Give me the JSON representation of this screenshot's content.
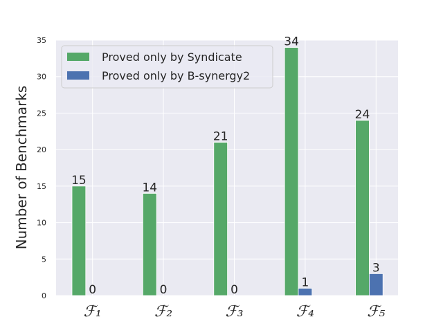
{
  "chart_data": {
    "type": "bar",
    "ylabel": "Number of Benchmarks",
    "categories": [
      "ℱ₁",
      "ℱ₂",
      "ℱ₃",
      "ℱ₄",
      "ℱ₅"
    ],
    "series": [
      {
        "name": "Proved only by Syndicate",
        "color": "#55a868",
        "values": [
          15,
          14,
          21,
          34,
          24
        ]
      },
      {
        "name": "Proved only by B-synergy2",
        "color": "#4c72b0",
        "values": [
          0,
          0,
          0,
          1,
          3
        ]
      }
    ],
    "ylim": [
      0,
      35
    ],
    "yticks": [
      0,
      5,
      10,
      15,
      20,
      25,
      30,
      35
    ],
    "grid": true,
    "legend": "upper left"
  }
}
